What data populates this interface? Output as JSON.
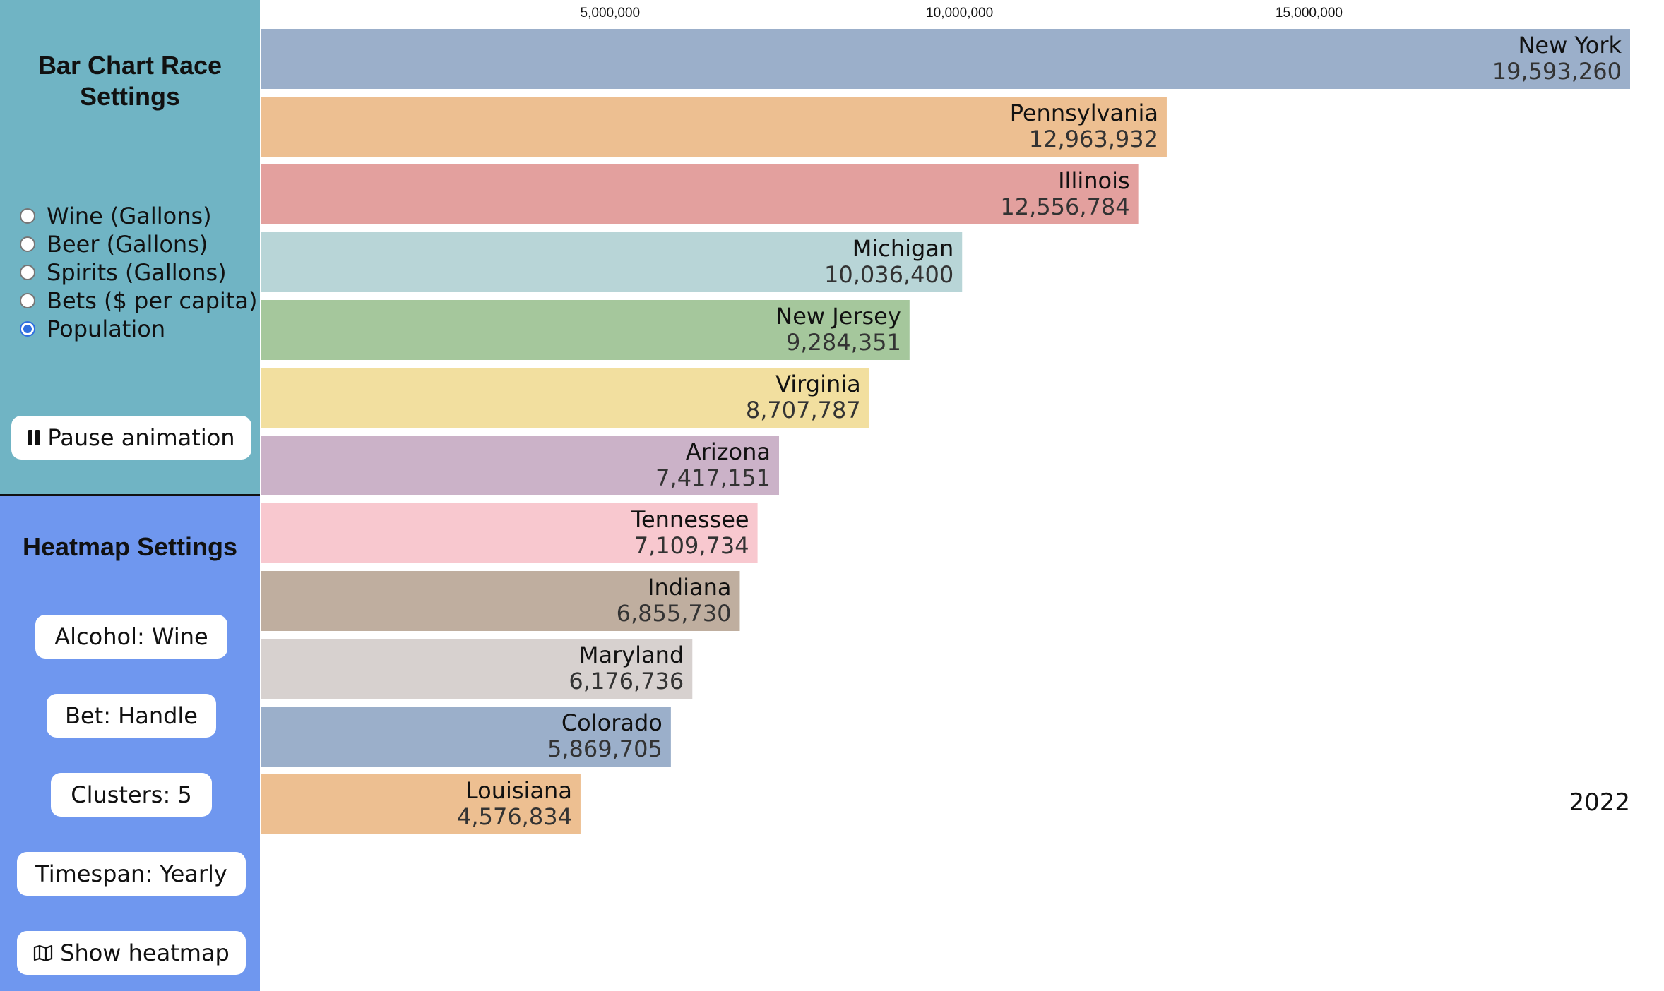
{
  "bar_race": {
    "title_line1": "Bar Chart Race",
    "title_line2": "Settings",
    "options": [
      {
        "label": "Wine (Gallons)",
        "checked": false
      },
      {
        "label": "Beer (Gallons)",
        "checked": false
      },
      {
        "label": "Spirits (Gallons)",
        "checked": false
      },
      {
        "label": "Bets ($ per capita)",
        "checked": false
      },
      {
        "label": "Population",
        "checked": true
      }
    ],
    "pause_icon": "pause-icon",
    "pause_label": "Pause animation"
  },
  "heatmap": {
    "title": "Heatmap Settings",
    "alcohol_label": "Alcohol: Wine",
    "bet_label": "Bet: Handle",
    "clusters_label": "Clusters: 5",
    "timespan_label": "Timespan: Yearly",
    "show_icon": "map-icon",
    "show_label": "Show heatmap"
  },
  "colors": {
    "top_panel": "#70b4c4",
    "bottom_panel": "#6f97ef",
    "radio_checked": "#2f6fe0"
  },
  "chart_data": {
    "type": "bar",
    "orientation": "horizontal",
    "year": "2022",
    "xlim": [
      0,
      19593260
    ],
    "x_ticks": [
      5000000,
      10000000,
      15000000
    ],
    "x_tick_labels": [
      "5,000,000",
      "10,000,000",
      "15,000,000"
    ],
    "categories": [
      "New York",
      "Pennsylvania",
      "Illinois",
      "Michigan",
      "New Jersey",
      "Virginia",
      "Arizona",
      "Tennessee",
      "Indiana",
      "Maryland",
      "Colorado",
      "Louisiana"
    ],
    "values": [
      19593260,
      12963932,
      12556784,
      10036400,
      9284351,
      8707787,
      7417151,
      7109734,
      6855730,
      6176736,
      5869705,
      4576834
    ],
    "value_labels": [
      "19,593,260",
      "12,963,932",
      "12,556,784",
      "10,036,400",
      "9,284,351",
      "8,707,787",
      "7,417,151",
      "7,109,734",
      "6,855,730",
      "6,176,736",
      "5,869,705",
      "4,576,834"
    ],
    "bar_colors": [
      "#9bafca",
      "#edbf91",
      "#e3a09e",
      "#b8d5d7",
      "#a5c79c",
      "#f2df9f",
      "#cbb2c8",
      "#f8c8cf",
      "#bfae9f",
      "#d7d1cf",
      "#9bafca",
      "#edbf91"
    ],
    "grid": false
  }
}
